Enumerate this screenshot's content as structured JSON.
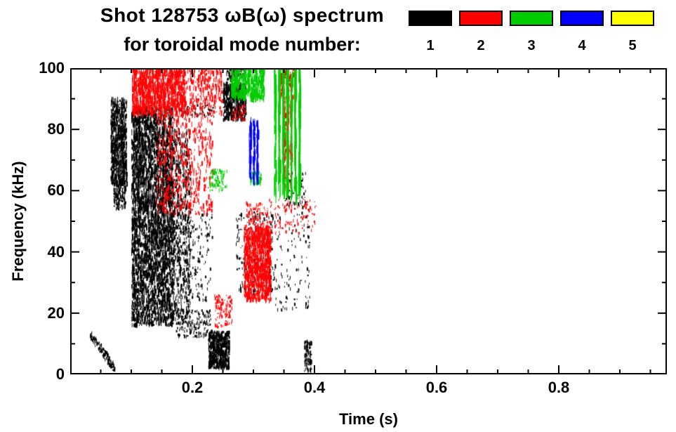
{
  "header": {
    "title_line1": "Shot 128753 ωB(ω) spectrum",
    "title_line2": "for toroidal mode number:"
  },
  "legend": {
    "modes": [
      {
        "label": "1",
        "color": "#000000"
      },
      {
        "label": "2",
        "color": "#ff0000"
      },
      {
        "label": "3",
        "color": "#00cc00"
      },
      {
        "label": "4",
        "color": "#0000ff"
      },
      {
        "label": "5",
        "color": "#ffff00"
      }
    ]
  },
  "chart_data": {
    "type": "scatter",
    "title": "Shot 128753 ωB(ω) spectrum for toroidal mode number: 1-5",
    "xlabel": "Time (s)",
    "ylabel": "Frequency (kHz)",
    "xlim": [
      0,
      0.977
    ],
    "ylim": [
      0,
      100
    ],
    "xticks": [
      0.2,
      0.4,
      0.6,
      0.8
    ],
    "xminor_step": 0.05,
    "yticks": [
      0,
      20,
      40,
      60,
      80,
      100
    ],
    "yminor_step": 10,
    "grid": false,
    "legend_position": "top-right",
    "series": [
      {
        "name": "1",
        "color": "#000000",
        "clusters": [
          {
            "t": [
              0.032,
              0.072
            ],
            "f": [
              2,
              13
            ],
            "n": 140,
            "seg": [
              0.3,
              1.2
            ],
            "trend": "down"
          },
          {
            "t": [
              0.066,
              0.092
            ],
            "f": [
              62,
              90
            ],
            "n": 650,
            "seg": [
              0.4,
              2.0
            ]
          },
          {
            "t": [
              0.07,
              0.09
            ],
            "f": [
              54,
              63
            ],
            "n": 150,
            "seg": [
              0.3,
              1.5
            ]
          },
          {
            "t": [
              0.1,
              0.168
            ],
            "f": [
              40,
              87
            ],
            "n": 2200,
            "seg": [
              0.4,
              2.2
            ]
          },
          {
            "t": [
              0.1,
              0.168
            ],
            "f": [
              16,
              40
            ],
            "n": 1100,
            "seg": [
              0.4,
              2.0
            ]
          },
          {
            "t": [
              0.168,
              0.196
            ],
            "f": [
              18,
              80
            ],
            "n": 600,
            "seg": [
              0.3,
              1.8
            ]
          },
          {
            "t": [
              0.173,
              0.23
            ],
            "f": [
              12,
              21
            ],
            "n": 200,
            "seg": [
              0.3,
              1.2
            ]
          },
          {
            "t": [
              0.185,
              0.232
            ],
            "f": [
              24,
              53
            ],
            "n": 150,
            "seg": [
              0.3,
              1.2
            ]
          },
          {
            "t": [
              0.226,
              0.26
            ],
            "f": [
              2,
              14
            ],
            "n": 600,
            "seg": [
              0.4,
              1.6
            ]
          },
          {
            "t": [
              0.25,
              0.288
            ],
            "f": [
              83,
              95
            ],
            "n": 520,
            "seg": [
              0.4,
              1.8
            ]
          },
          {
            "t": [
              0.255,
              0.285
            ],
            "f": [
              96,
              100
            ],
            "n": 80,
            "seg": [
              0.3,
              1.4
            ]
          },
          {
            "t": [
              0.179,
              0.236
            ],
            "f": [
              84,
              88
            ],
            "n": 70,
            "seg": [
              0.3,
              1.0
            ]
          },
          {
            "t": [
              0.271,
              0.335
            ],
            "f": [
              26,
              53
            ],
            "n": 220,
            "seg": [
              0.3,
              1.5
            ]
          },
          {
            "t": [
              0.335,
              0.392
            ],
            "f": [
              21,
              58
            ],
            "n": 130,
            "seg": [
              0.3,
              1.2
            ]
          },
          {
            "t": [
              0.383,
              0.394
            ],
            "f": [
              1,
              11
            ],
            "n": 90,
            "seg": [
              0.4,
              1.5
            ]
          },
          {
            "t": [
              0.35,
              0.385
            ],
            "f": [
              55,
              66
            ],
            "n": 60,
            "seg": [
              0.3,
              1.2
            ]
          }
        ]
      },
      {
        "name": "2",
        "color": "#ff0000",
        "clusters": [
          {
            "t": [
              0.101,
              0.187
            ],
            "f": [
              85,
              100
            ],
            "n": 1000,
            "seg": [
              0.4,
              2.5
            ]
          },
          {
            "t": [
              0.141,
              0.233
            ],
            "f": [
              52,
              85
            ],
            "n": 550,
            "seg": [
              0.4,
              2.0
            ]
          },
          {
            "t": [
              0.187,
              0.248
            ],
            "f": [
              85,
              100
            ],
            "n": 260,
            "seg": [
              0.4,
              2.0
            ]
          },
          {
            "t": [
              0.236,
              0.265
            ],
            "f": [
              15,
              26
            ],
            "n": 120,
            "seg": [
              0.3,
              1.2
            ]
          },
          {
            "t": [
              0.284,
              0.328
            ],
            "f": [
              24,
              48
            ],
            "n": 1000,
            "seg": [
              0.4,
              2.0
            ]
          },
          {
            "t": [
              0.288,
              0.323
            ],
            "f": [
              47,
              56
            ],
            "n": 120,
            "seg": [
              0.3,
              1.2
            ]
          },
          {
            "t": [
              0.348,
              0.364
            ],
            "f": [
              61,
              89
            ],
            "n": 180,
            "seg": [
              0.6,
              2.5
            ],
            "cols": 3
          },
          {
            "t": [
              0.344,
              0.367
            ],
            "f": [
              90,
              100
            ],
            "n": 120,
            "seg": [
              0.4,
              2.0
            ]
          },
          {
            "t": [
              0.323,
              0.403
            ],
            "f": [
              46,
              57
            ],
            "n": 110,
            "seg": [
              0.3,
              1.2
            ]
          },
          {
            "t": [
              0.265,
              0.288
            ],
            "f": [
              83,
              88
            ],
            "n": 60,
            "seg": [
              0.3,
              1.0
            ]
          }
        ]
      },
      {
        "name": "3",
        "color": "#00cc00",
        "clusters": [
          {
            "t": [
              0.263,
              0.317
            ],
            "f": [
              90,
              100
            ],
            "n": 380,
            "seg": [
              0.6,
              3.0
            ]
          },
          {
            "t": [
              0.332,
              0.378
            ],
            "f": [
              59,
              99
            ],
            "n": 300,
            "seg": [
              2.0,
              9.0
            ],
            "cols": 7
          },
          {
            "t": [
              0.228,
              0.256
            ],
            "f": [
              60,
              67
            ],
            "n": 70,
            "seg": [
              0.4,
              1.5
            ]
          },
          {
            "t": [
              0.294,
              0.312
            ],
            "f": [
              62,
              66
            ],
            "n": 50,
            "seg": [
              0.4,
              1.5
            ]
          }
        ]
      },
      {
        "name": "4",
        "color": "#0000ff",
        "clusters": [
          {
            "t": [
              0.291,
              0.309
            ],
            "f": [
              63,
              83
            ],
            "n": 140,
            "seg": [
              1.0,
              3.5
            ],
            "cols": 3
          }
        ]
      },
      {
        "name": "5",
        "color": "#ffff00",
        "clusters": []
      }
    ]
  }
}
